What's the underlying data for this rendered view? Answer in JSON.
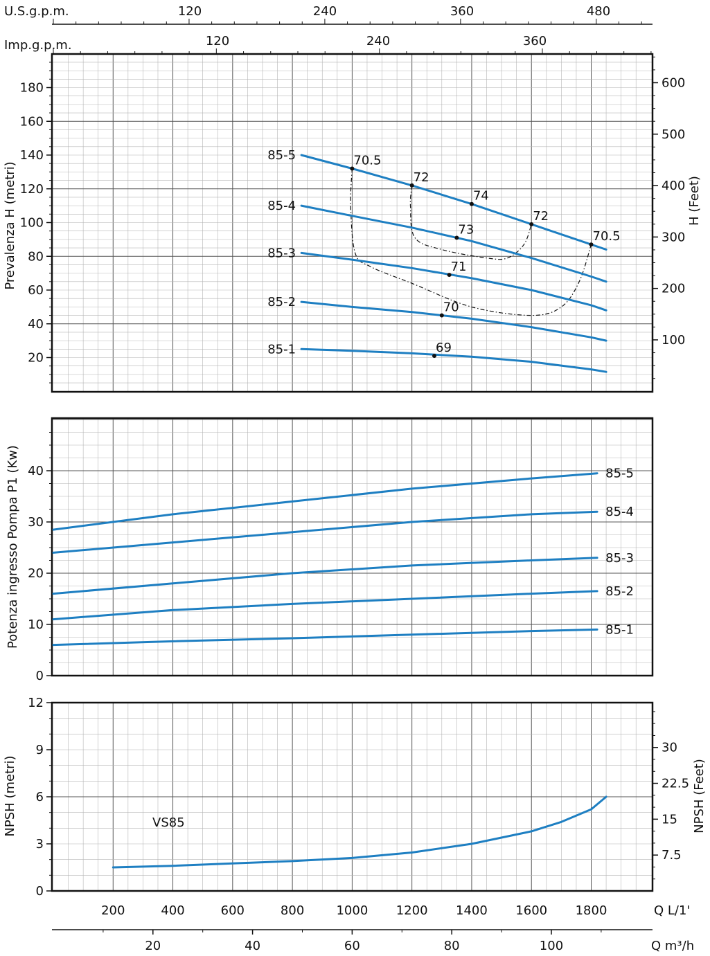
{
  "colors": {
    "curve": "#1e7fc2",
    "grid": "#b4b4b4",
    "major_grid": "#555555",
    "frame": "#111111",
    "efficiency": "#111111"
  },
  "top_axes": {
    "usgpm_label": "U.S.g.p.m.",
    "usgpm_ticks": [
      "120",
      "240",
      "360",
      "480"
    ],
    "impgpm_label": "Imp.g.p.m.",
    "impgpm_ticks": [
      "120",
      "240",
      "360"
    ]
  },
  "bottom_axes": {
    "lmin_label": "Q L/1'",
    "lmin_ticks": [
      "200",
      "400",
      "600",
      "800",
      "1000",
      "1200",
      "1400",
      "1600",
      "1800"
    ],
    "m3h_label": "Q m³/h",
    "m3h_ticks": [
      "20",
      "40",
      "60",
      "80",
      "100"
    ]
  },
  "chart_data": [
    {
      "type": "line",
      "title": "Prevalenza H",
      "xlabel": "Q L/1'",
      "ylabel": "Prevalenza H (metri)",
      "ylabel_right": "H (Feet)",
      "xlim": [
        0,
        2000
      ],
      "ylim": [
        0,
        200
      ],
      "yticks": [
        "20",
        "40",
        "60",
        "80",
        "100",
        "120",
        "140",
        "160",
        "180"
      ],
      "yticks_right": [
        "100",
        "200",
        "300",
        "400",
        "500",
        "600"
      ],
      "series": [
        {
          "name": "85-5",
          "x": [
            830,
            1000,
            1200,
            1400,
            1600,
            1800,
            1850
          ],
          "y": [
            140,
            132,
            122,
            111,
            99,
            87,
            84
          ]
        },
        {
          "name": "85-4",
          "x": [
            830,
            1000,
            1200,
            1400,
            1600,
            1800,
            1850
          ],
          "y": [
            110,
            104,
            97,
            89,
            79,
            68,
            65
          ]
        },
        {
          "name": "85-3",
          "x": [
            830,
            1000,
            1200,
            1400,
            1600,
            1800,
            1850
          ],
          "y": [
            82,
            78,
            73,
            67,
            60,
            51,
            48
          ]
        },
        {
          "name": "85-2",
          "x": [
            830,
            1000,
            1200,
            1400,
            1600,
            1800,
            1850
          ],
          "y": [
            53,
            50,
            47,
            43,
            38,
            32,
            30
          ]
        },
        {
          "name": "85-1",
          "x": [
            830,
            1000,
            1200,
            1400,
            1600,
            1800,
            1850
          ],
          "y": [
            25,
            24,
            22.5,
            20.5,
            17.5,
            13,
            11.5
          ]
        }
      ],
      "efficiency_points": [
        {
          "label": "70.5",
          "x": 1000,
          "y": 132
        },
        {
          "label": "72",
          "x": 1200,
          "y": 122
        },
        {
          "label": "74",
          "x": 1400,
          "y": 111
        },
        {
          "label": "72",
          "x": 1600,
          "y": 99
        },
        {
          "label": "70.5",
          "x": 1800,
          "y": 87
        },
        {
          "label": "73",
          "x": 1350,
          "y": 91
        },
        {
          "label": "71",
          "x": 1325,
          "y": 69
        },
        {
          "label": "70",
          "x": 1300,
          "y": 45
        },
        {
          "label": "69",
          "x": 1275,
          "y": 21
        }
      ],
      "efficiency_contours": [
        {
          "name": "70.5",
          "x": [
            1000,
            995,
            1010,
            1060,
            1200,
            1400,
            1600,
            1700,
            1760,
            1800
          ],
          "y": [
            132,
            110,
            82,
            74,
            64,
            50,
            45,
            50,
            65,
            87
          ]
        },
        {
          "name": "72",
          "x": [
            1200,
            1195,
            1210,
            1300,
            1450,
            1520,
            1575,
            1600
          ],
          "y": [
            122,
            110,
            91,
            84,
            79,
            79,
            87,
            99
          ]
        }
      ]
    },
    {
      "type": "line",
      "title": "Potenza ingresso Pompa P1",
      "xlabel": "Q L/1'",
      "ylabel": "Potenza ingresso Pompa P1 (Kw)",
      "xlim": [
        0,
        2000
      ],
      "ylim": [
        0,
        50
      ],
      "yticks": [
        "0",
        "10",
        "20",
        "30",
        "40"
      ],
      "series": [
        {
          "name": "85-5",
          "x": [
            0,
            400,
            800,
            1200,
            1600,
            1820
          ],
          "y": [
            28.5,
            31.5,
            34,
            36.5,
            38.5,
            39.5
          ]
        },
        {
          "name": "85-4",
          "x": [
            0,
            400,
            800,
            1200,
            1600,
            1820
          ],
          "y": [
            24,
            26,
            28,
            30,
            31.5,
            32
          ]
        },
        {
          "name": "85-3",
          "x": [
            0,
            400,
            800,
            1200,
            1600,
            1820
          ],
          "y": [
            16,
            18,
            20,
            21.5,
            22.5,
            23
          ]
        },
        {
          "name": "85-2",
          "x": [
            0,
            400,
            800,
            1200,
            1600,
            1820
          ],
          "y": [
            11,
            12.8,
            14,
            15,
            16,
            16.5
          ]
        },
        {
          "name": "85-1",
          "x": [
            0,
            400,
            800,
            1200,
            1600,
            1820
          ],
          "y": [
            6,
            6.7,
            7.3,
            8,
            8.7,
            9
          ]
        }
      ]
    },
    {
      "type": "line",
      "title": "NPSH",
      "xlabel": "Q L/1'",
      "ylabel": "NPSH (metri)",
      "ylabel_right": "NPSH (Feet)",
      "xlim": [
        0,
        2000
      ],
      "ylim": [
        0,
        12
      ],
      "yticks": [
        "0",
        "3",
        "6",
        "9",
        "12"
      ],
      "yticks_right": [
        "7.5",
        "15",
        "22.5",
        "30"
      ],
      "annotation": "VS85",
      "series": [
        {
          "name": "VS85",
          "x": [
            200,
            400,
            600,
            800,
            1000,
            1200,
            1400,
            1600,
            1700,
            1800,
            1850
          ],
          "y": [
            1.5,
            1.6,
            1.75,
            1.9,
            2.1,
            2.45,
            3.0,
            3.8,
            4.4,
            5.2,
            6.0
          ]
        }
      ]
    }
  ]
}
